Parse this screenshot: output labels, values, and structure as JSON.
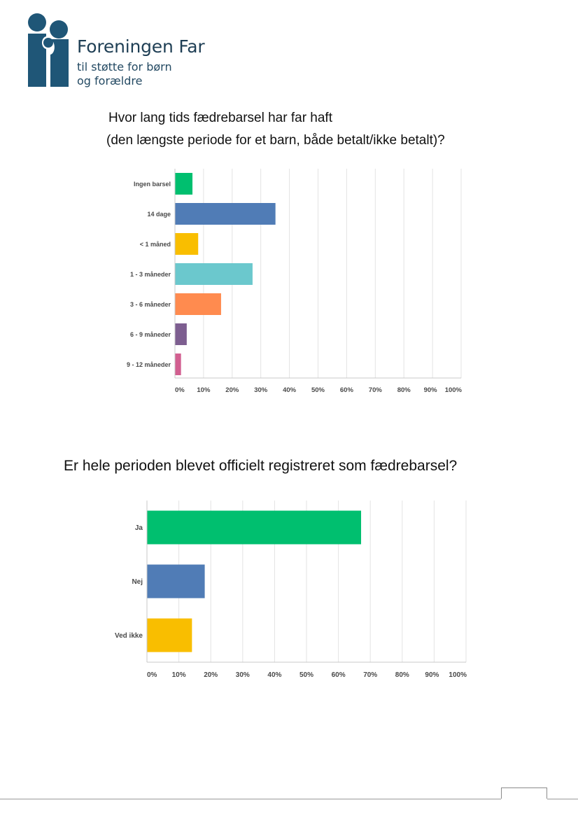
{
  "header": {
    "org_name": "Foreningen Far",
    "tagline_line1": "til støtte for børn",
    "tagline_line2": "og forældre",
    "brand_color": "#1f4f6e"
  },
  "chart_data": [
    {
      "type": "bar",
      "orientation": "horizontal",
      "title_line1": "Hvor lang tids fædrebarsel har far haft",
      "title_line2": "(den længste periode for et barn, både betalt/ikke betalt)?",
      "categories": [
        "Ingen barsel",
        "14 dage",
        "< 1 måned",
        "1 - 3 måneder",
        "3 - 6 måneder",
        "6 - 9 måneder",
        "9 - 12 måneder"
      ],
      "values": [
        6,
        35,
        8,
        27,
        16,
        4,
        2
      ],
      "colors": [
        "#00bf6f",
        "#507cb6",
        "#f9be00",
        "#6bc8cd",
        "#ff8b4f",
        "#7d5e90",
        "#d25f90"
      ],
      "x_ticks": [
        "0%",
        "10%",
        "20%",
        "30%",
        "40%",
        "50%",
        "60%",
        "70%",
        "80%",
        "90%",
        "100%"
      ],
      "xlim": [
        0,
        100
      ],
      "grid": true
    },
    {
      "type": "bar",
      "orientation": "horizontal",
      "title": "Er hele perioden blevet officielt registreret som fædrebarsel?",
      "categories": [
        "Ja",
        "Nej",
        "Ved ikke"
      ],
      "values": [
        67,
        18,
        14
      ],
      "colors": [
        "#00bf6f",
        "#507cb6",
        "#f9be00"
      ],
      "x_ticks": [
        "0%",
        "10%",
        "20%",
        "30%",
        "40%",
        "50%",
        "60%",
        "70%",
        "80%",
        "90%",
        "100%"
      ],
      "xlim": [
        0,
        100
      ],
      "grid": true
    }
  ]
}
